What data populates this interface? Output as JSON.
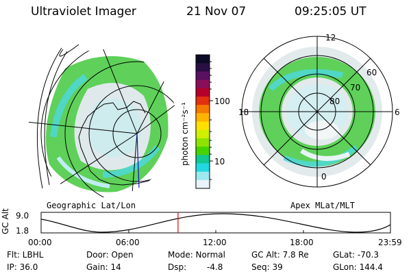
{
  "header": {
    "instrument": "Ultraviolet Imager",
    "date": "21 Nov 07",
    "time": "09:25:05 UT"
  },
  "geo_panel": {
    "caption": "Geographic Lat/Lon"
  },
  "polar_panel": {
    "caption": "Apex MLat/MLT",
    "mlt_labels": [
      "12",
      "18",
      "6",
      "0"
    ],
    "lat_labels": [
      "60",
      "70",
      "80"
    ]
  },
  "colorbar": {
    "label": "photon cm⁻²s⁻¹",
    "ticks": [
      "100",
      "10"
    ],
    "colors": [
      "#0b0b25",
      "#2a0f45",
      "#5a1060",
      "#8a0f5a",
      "#b4002a",
      "#e23010",
      "#f57a00",
      "#ffb400",
      "#ffe000",
      "#cff000",
      "#8ce400",
      "#46d400",
      "#10c890",
      "#22d8e0",
      "#9ee8f0",
      "#e8f4f8"
    ]
  },
  "altitude_plot": {
    "ylabel": "GC Alt",
    "ymax_label": "9.0",
    "ymin_label": "1.8",
    "x_ticks": [
      "00:00",
      "06:00",
      "12:00",
      "18:00",
      "23:59"
    ],
    "current_time_fraction": 0.392
  },
  "status": {
    "flt": "Flt: LBHL",
    "ip": "IP: 36.0",
    "door": "Door: Open",
    "gain": "Gain: 14",
    "mode": "Mode: Normal",
    "dsp": "Dsp:",
    "dsp_value": "-4.8",
    "gc_alt": "GC Alt: 7.8 Re",
    "seq": "Seq: 39",
    "glat": "GLat: -70.3",
    "glon": "GLon: 144.4"
  }
}
